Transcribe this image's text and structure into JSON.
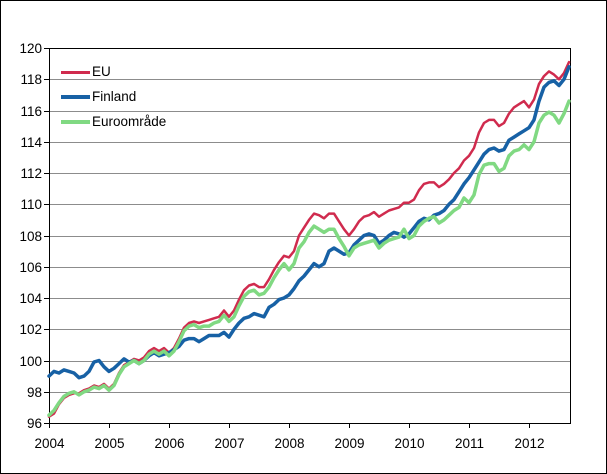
{
  "figure": {
    "background": "#ffffff",
    "frame_color": "#000000",
    "plot_border_color": "#000000",
    "gridline_color": "#8c8c8c",
    "tick_label_color": "#000000"
  },
  "chart_data": {
    "type": "line",
    "title": "",
    "xlabel": "",
    "ylabel": "",
    "ylim": [
      96,
      120
    ],
    "yticks": [
      96,
      98,
      100,
      102,
      104,
      106,
      108,
      110,
      112,
      114,
      116,
      118,
      120
    ],
    "xticks": [
      "2004",
      "2005",
      "2006",
      "2007",
      "2008",
      "2009",
      "2010",
      "2011",
      "2012"
    ],
    "grid": "horizontal",
    "legend_position": "top-left-inside",
    "x_start": "2004-01",
    "x_end": "2012-09",
    "x_months": [
      "2004-01",
      "2004-02",
      "2004-03",
      "2004-04",
      "2004-05",
      "2004-06",
      "2004-07",
      "2004-08",
      "2004-09",
      "2004-10",
      "2004-11",
      "2004-12",
      "2005-01",
      "2005-02",
      "2005-03",
      "2005-04",
      "2005-05",
      "2005-06",
      "2005-07",
      "2005-08",
      "2005-09",
      "2005-10",
      "2005-11",
      "2005-12",
      "2006-01",
      "2006-02",
      "2006-03",
      "2006-04",
      "2006-05",
      "2006-06",
      "2006-07",
      "2006-08",
      "2006-09",
      "2006-10",
      "2006-11",
      "2006-12",
      "2007-01",
      "2007-02",
      "2007-03",
      "2007-04",
      "2007-05",
      "2007-06",
      "2007-07",
      "2007-08",
      "2007-09",
      "2007-10",
      "2007-11",
      "2007-12",
      "2008-01",
      "2008-02",
      "2008-03",
      "2008-04",
      "2008-05",
      "2008-06",
      "2008-07",
      "2008-08",
      "2008-09",
      "2008-10",
      "2008-11",
      "2008-12",
      "2009-01",
      "2009-02",
      "2009-03",
      "2009-04",
      "2009-05",
      "2009-06",
      "2009-07",
      "2009-08",
      "2009-09",
      "2009-10",
      "2009-11",
      "2009-12",
      "2010-01",
      "2010-02",
      "2010-03",
      "2010-04",
      "2010-05",
      "2010-06",
      "2010-07",
      "2010-08",
      "2010-09",
      "2010-10",
      "2010-11",
      "2010-12",
      "2011-01",
      "2011-02",
      "2011-03",
      "2011-04",
      "2011-05",
      "2011-06",
      "2011-07",
      "2011-08",
      "2011-09",
      "2011-10",
      "2011-11",
      "2011-12",
      "2012-01",
      "2012-02",
      "2012-03",
      "2012-04",
      "2012-05",
      "2012-06",
      "2012-07",
      "2012-08",
      "2012-09"
    ],
    "series": [
      {
        "name": "EU",
        "color": "#d02b4e",
        "line_width": 2.5,
        "values": [
          96.4,
          96.6,
          97.2,
          97.6,
          97.8,
          97.9,
          97.9,
          98.1,
          98.2,
          98.4,
          98.3,
          98.5,
          98.2,
          98.5,
          99.2,
          99.7,
          99.9,
          100.1,
          100.0,
          100.2,
          100.6,
          100.8,
          100.6,
          100.8,
          100.5,
          100.8,
          101.4,
          102.1,
          102.4,
          102.5,
          102.4,
          102.5,
          102.6,
          102.7,
          102.8,
          103.2,
          102.8,
          103.2,
          103.9,
          104.5,
          104.8,
          104.9,
          104.7,
          104.7,
          105.2,
          105.8,
          106.3,
          106.7,
          106.6,
          107.0,
          108.0,
          108.5,
          109.0,
          109.4,
          109.3,
          109.1,
          109.4,
          109.4,
          108.9,
          108.4,
          108.0,
          108.4,
          108.9,
          109.2,
          109.3,
          109.5,
          109.2,
          109.4,
          109.6,
          109.7,
          109.8,
          110.1,
          110.1,
          110.3,
          110.9,
          111.3,
          111.4,
          111.4,
          111.1,
          111.3,
          111.6,
          112.0,
          112.3,
          112.8,
          113.1,
          113.6,
          114.6,
          115.2,
          115.4,
          115.4,
          115.0,
          115.2,
          115.8,
          116.2,
          116.4,
          116.6,
          116.2,
          116.7,
          117.7,
          118.2,
          118.5,
          118.3,
          118.0,
          118.4,
          119.1
        ]
      },
      {
        "name": "Finland",
        "color": "#1761a5",
        "line_width": 3.5,
        "values": [
          99.0,
          99.3,
          99.2,
          99.4,
          99.3,
          99.2,
          98.9,
          99.0,
          99.3,
          99.9,
          100.0,
          99.6,
          99.3,
          99.5,
          99.8,
          100.1,
          99.9,
          100.0,
          99.8,
          100.0,
          100.3,
          100.5,
          100.3,
          100.4,
          100.5,
          100.7,
          100.9,
          101.3,
          101.4,
          101.4,
          101.2,
          101.4,
          101.6,
          101.6,
          101.6,
          101.8,
          101.5,
          102.0,
          102.4,
          102.7,
          102.8,
          103.0,
          102.9,
          102.8,
          103.4,
          103.6,
          103.9,
          104.0,
          104.2,
          104.6,
          105.1,
          105.4,
          105.8,
          106.2,
          106.0,
          106.2,
          107.0,
          107.2,
          107.0,
          106.8,
          106.9,
          107.4,
          107.7,
          108.0,
          108.1,
          108.0,
          107.5,
          107.7,
          108.0,
          108.2,
          108.1,
          107.9,
          108.1,
          108.5,
          108.9,
          109.1,
          109.0,
          109.3,
          109.4,
          109.6,
          110.0,
          110.3,
          110.8,
          111.3,
          111.7,
          112.2,
          112.7,
          113.2,
          113.5,
          113.6,
          113.4,
          113.5,
          114.1,
          114.3,
          114.5,
          114.7,
          114.9,
          115.4,
          116.6,
          117.5,
          117.8,
          117.9,
          117.6,
          118.0,
          118.8
        ]
      },
      {
        "name": "Euroområde",
        "color": "#80d982",
        "line_width": 3.5,
        "values": [
          96.5,
          96.8,
          97.3,
          97.7,
          97.9,
          98.0,
          97.8,
          98.0,
          98.1,
          98.3,
          98.2,
          98.4,
          98.1,
          98.4,
          99.1,
          99.6,
          99.8,
          100.0,
          99.8,
          100.0,
          100.4,
          100.6,
          100.4,
          100.6,
          100.3,
          100.6,
          101.2,
          101.9,
          102.2,
          102.3,
          102.1,
          102.2,
          102.2,
          102.4,
          102.5,
          102.9,
          102.5,
          102.8,
          103.5,
          104.1,
          104.4,
          104.5,
          104.2,
          104.3,
          104.7,
          105.3,
          105.8,
          106.2,
          105.8,
          106.2,
          107.2,
          107.6,
          108.2,
          108.6,
          108.4,
          108.2,
          108.4,
          108.4,
          107.8,
          107.3,
          106.7,
          107.2,
          107.4,
          107.5,
          107.6,
          107.7,
          107.2,
          107.5,
          107.7,
          107.8,
          107.9,
          108.4,
          107.8,
          108.0,
          108.6,
          108.9,
          109.1,
          109.2,
          108.8,
          109.0,
          109.3,
          109.6,
          109.8,
          110.4,
          110.1,
          110.6,
          111.9,
          112.5,
          112.6,
          112.6,
          112.1,
          112.3,
          113.1,
          113.4,
          113.5,
          113.8,
          113.5,
          114.0,
          115.2,
          115.7,
          115.9,
          115.7,
          115.2,
          115.8,
          116.6
        ]
      }
    ]
  }
}
